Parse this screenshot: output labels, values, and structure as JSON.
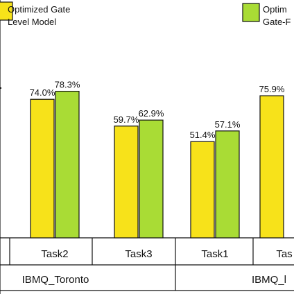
{
  "chart_data": {
    "type": "bar",
    "legend_placement": "top",
    "grid": false,
    "ylim": [
      0,
      100
    ],
    "groups": [
      "IBMQ_Toronto",
      "IBMQ_l"
    ],
    "categories": [
      {
        "label": "Task2",
        "group": "IBMQ_Toronto"
      },
      {
        "label": "Task3",
        "group": "IBMQ_Toronto"
      },
      {
        "label": "Task1",
        "group": "IBMQ_l"
      },
      {
        "label": "Tas",
        "group": "IBMQ_l"
      }
    ],
    "series": [
      {
        "name": "Optimized Gate Level Model",
        "name_lines": [
          "Optimized Gate",
          "Level Model"
        ],
        "color": "#f7e21a",
        "values": [
          74.0,
          59.7,
          51.4,
          75.9
        ],
        "labels": [
          "74.0%",
          "59.7%",
          "51.4%",
          "75.9%"
        ]
      },
      {
        "name": "Optim Gate-F",
        "name_lines": [
          "Optim",
          "Gate-F"
        ],
        "color": "#a9dc35",
        "values": [
          78.3,
          62.9,
          57.1,
          null
        ],
        "labels": [
          "78.3%",
          "62.9%",
          "57.1%",
          ""
        ]
      }
    ]
  }
}
